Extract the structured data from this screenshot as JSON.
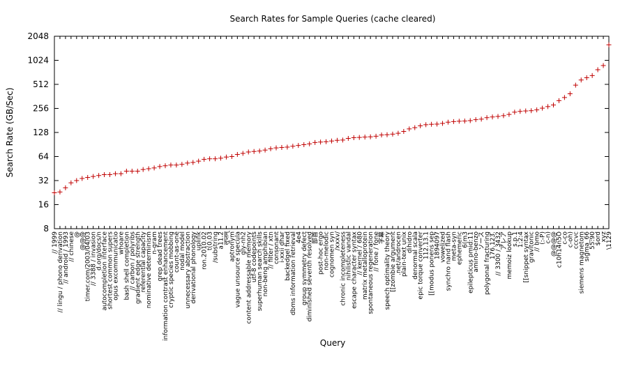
{
  "chart_data": {
    "type": "scatter",
    "title": "Search Rates for Sample Queries (cache cleared)",
    "xlabel": "Query",
    "ylabel": "Search Rate (GB/Sec)",
    "log_scale_y": true,
    "color": "#c00000",
    "categories": [
      "// 1999",
      "// lingu / phono derivation",
      "// android / 1993",
      "// chinese",
      "@",
      "@@@",
      "timer.com/2003/04/03",
      "// 3388 / invasion",
      "d.org/docs/n",
      "autocompletion interface",
      "shortest common supers",
      "opus excommunicatio",
      "whoare",
      "bash shell completion",
      "// carbon / polyribs",
      "gradient edge strength",
      "referential capacity",
      "nominative determinism",
      "n-gram",
      "grep dead trees",
      "information contrast enhancement",
      "cryptic species mobbing",
      "count-as-one",
      "nodal model",
      "unnecessary abstraction",
      "derivational phonology",
      "uplink",
      "ron.2010.02",
      "t(0.03",
      "/substring",
      "a11.2",
      "लुप्तम्",
      "aptronym",
      "vague unsource specula",
      "gly-nh2",
      "content addressable memory",
      "utf-8 codepoints",
      "superhuman search skills",
      "non-beng amphibian",
      "// filter / xtn",
      "consonant",
      "i-xxii dhar",
      "backedgel fixed",
      "dbms information retrieval",
      "4e4",
      "group symmetry defect",
      "diminished seventh resolved",
      "部首",
      "post-hoc ergo",
      "non-melodic",
      "cognomen syn",
      "/xxxv/",
      "chronic incompleteness",
      "nihilistic vandal",
      "escape character syntax",
      "// kernel / 680",
      "matrix metalloprotein",
      "spontaneous regeneration",
      "// fone / fone",
      "字幕",
      "speech optimality theory",
      "[[zombie argument",
      ".net/androcen",
      "plain-text unix",
      "dihidro",
      "denormal scala",
      "epic torque converter",
      "112.13.1",
      "[[modus ponens sep",
      "1894097",
      "vowelized",
      "synchro nand flash",
      "meta-syn",
      "ephemeric",
      "6(m3",
      "epilepticus pmid:11",
      "amino-benzo",
      "ソース",
      "polygonal fracturing",
      "176.123.",
      "// 3300 / 3432",
      "ア゙レア",
      "memoiz lookup",
      "s.p.1",
      "1:2:4",
      "[[snippet syntax",
      "gravitonic",
      "// bmo",
      "(:-P)",
      "c-n)",
      "@@@@",
      "c10h14n5O",
      "c-co",
      "c-oh)",
      "cccvc",
      "siemens magnetom",
      "sigma_66",
      "55:90",
      "$ord",
      "xyz",
      "\\1129"
    ],
    "values": [
      22.5,
      23,
      26,
      30,
      32,
      34,
      35,
      36,
      37,
      38,
      38,
      39,
      39,
      42,
      42,
      42,
      44,
      45,
      46,
      48,
      49,
      50,
      50,
      51,
      53,
      54,
      56,
      59,
      60,
      60,
      61,
      63,
      64,
      68,
      70,
      73,
      74,
      75,
      77,
      80,
      82,
      83,
      84,
      86,
      88,
      90,
      92,
      96,
      97,
      98,
      100,
      102,
      103,
      108,
      110,
      111,
      112,
      113,
      115,
      119,
      120,
      122,
      125,
      132,
      142,
      147,
      155,
      160,
      162,
      163,
      166,
      172,
      175,
      177,
      178,
      180,
      185,
      188,
      196,
      200,
      203,
      208,
      215,
      230,
      235,
      238,
      240,
      245,
      258,
      270,
      282,
      320,
      350,
      390,
      500,
      580,
      620,
      660,
      780,
      880,
      1600
    ],
    "ylim": [
      8,
      2048
    ],
    "yticks": [
      8,
      16,
      32,
      64,
      128,
      256,
      512,
      1024,
      2048
    ]
  }
}
